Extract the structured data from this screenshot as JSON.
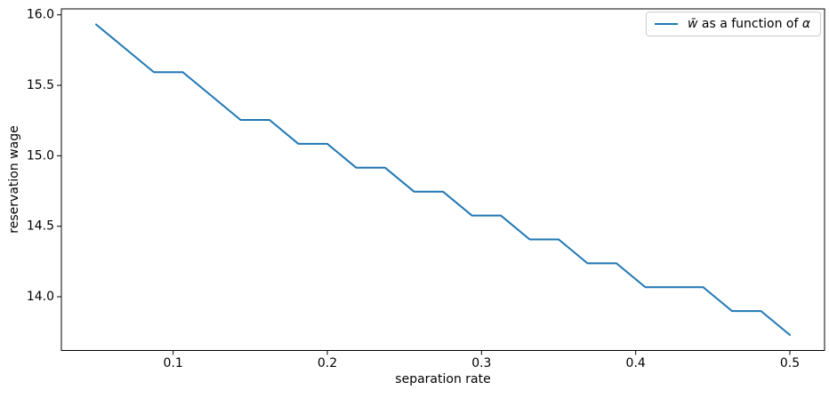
{
  "chart_data": {
    "type": "line",
    "title": "",
    "xlabel": "separation rate",
    "ylabel": "reservation wage",
    "xlim": [
      0.0275,
      0.5225
    ],
    "ylim": [
      13.6187,
      16.0424
    ],
    "grid": false,
    "legend_position": "upper right",
    "xticks": [
      0.1,
      0.2,
      0.3,
      0.4,
      0.5
    ],
    "xtick_labels": [
      "0.1",
      "0.2",
      "0.3",
      "0.4",
      "0.5"
    ],
    "yticks": [
      14.0,
      14.5,
      15.0,
      15.5,
      16.0
    ],
    "ytick_labels": [
      "14.0",
      "14.5",
      "15.0",
      "15.5",
      "16.0"
    ],
    "series": [
      {
        "name": "w̄ as a function of α",
        "color": "#1f77b4",
        "x": [
          0.05,
          0.06875,
          0.0875,
          0.10625,
          0.125,
          0.14375,
          0.1625,
          0.18125,
          0.2,
          0.21875,
          0.2375,
          0.25625,
          0.275,
          0.29375,
          0.3125,
          0.33125,
          0.35,
          0.36875,
          0.3875,
          0.40625,
          0.425,
          0.44375,
          0.4625,
          0.48125,
          0.5
        ],
        "y": [
          15.9322,
          15.7627,
          15.5932,
          15.5932,
          15.4237,
          15.2542,
          15.2542,
          15.0847,
          15.0847,
          14.9153,
          14.9153,
          14.7458,
          14.7458,
          14.5763,
          14.5763,
          14.4068,
          14.4068,
          14.2373,
          14.2373,
          14.0678,
          14.0678,
          14.0678,
          13.8983,
          13.8983,
          13.7288
        ]
      }
    ]
  },
  "legend": {
    "w_symbol": "w̄",
    "middle_text": " as a function of ",
    "alpha_symbol": "α"
  },
  "colors": {
    "line": "#1f77b4",
    "spine": "#000000",
    "text": "#000000",
    "legend_border": "#cccccc"
  }
}
